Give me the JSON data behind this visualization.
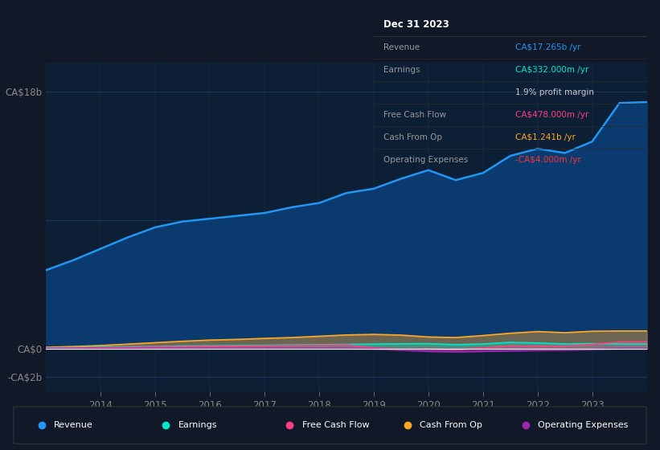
{
  "bg_color": "#111827",
  "plot_bg_color": "#0d1f35",
  "grid_color": "#1e3a5f",
  "years": [
    2013.0,
    2013.5,
    2014.0,
    2014.5,
    2015.0,
    2015.5,
    2016.0,
    2016.5,
    2017.0,
    2017.5,
    2018.0,
    2018.5,
    2019.0,
    2019.5,
    2020.0,
    2020.5,
    2021.0,
    2021.5,
    2022.0,
    2022.5,
    2023.0,
    2023.5,
    2024.0
  ],
  "revenue": [
    5.5,
    6.2,
    7.0,
    7.8,
    8.5,
    8.9,
    9.1,
    9.3,
    9.5,
    9.9,
    10.2,
    10.9,
    11.2,
    11.9,
    12.5,
    11.8,
    12.3,
    13.5,
    14.0,
    13.7,
    14.5,
    17.2,
    17.265
  ],
  "earnings": [
    0.05,
    0.07,
    0.1,
    0.13,
    0.15,
    0.19,
    0.2,
    0.22,
    0.24,
    0.26,
    0.28,
    0.3,
    0.32,
    0.34,
    0.35,
    0.28,
    0.33,
    0.44,
    0.4,
    0.33,
    0.36,
    0.33,
    0.332
  ],
  "free_cash_flow": [
    0.02,
    0.04,
    0.06,
    0.09,
    0.12,
    0.14,
    0.16,
    0.18,
    0.2,
    0.22,
    0.24,
    0.26,
    0.05,
    -0.05,
    -0.02,
    -0.08,
    0.05,
    0.2,
    0.18,
    0.18,
    0.3,
    0.47,
    0.478
  ],
  "cash_from_op": [
    0.1,
    0.15,
    0.22,
    0.32,
    0.42,
    0.52,
    0.6,
    0.65,
    0.72,
    0.78,
    0.87,
    0.96,
    1.0,
    0.95,
    0.82,
    0.78,
    0.92,
    1.08,
    1.2,
    1.12,
    1.22,
    1.24,
    1.241
  ],
  "operating_expenses": [
    0.0,
    0.0,
    0.0,
    0.0,
    0.0,
    0.0,
    0.0,
    0.0,
    0.0,
    0.0,
    0.0,
    0.0,
    -0.02,
    -0.1,
    -0.18,
    -0.22,
    -0.18,
    -0.15,
    -0.12,
    -0.1,
    -0.06,
    -0.004,
    -0.004
  ],
  "revenue_color": "#2196f3",
  "revenue_fill": "#0a3a6e",
  "earnings_color": "#00e5cc",
  "free_cash_flow_color": "#ff4081",
  "cash_from_op_color": "#ffa726",
  "operating_expenses_color": "#9c27b0",
  "ylim_top": 20.0,
  "ylim_bottom": -3.0,
  "xlim_left": 2013.0,
  "xlim_right": 2024.0,
  "ytick_positions": [
    -2.0,
    0.0,
    9.0,
    18.0
  ],
  "ytick_labels": [
    "-CA$2b",
    "CA$0",
    "",
    "CA$18b"
  ],
  "xticks": [
    2014,
    2015,
    2016,
    2017,
    2018,
    2019,
    2020,
    2021,
    2022,
    2023
  ],
  "info_box": {
    "title": "Dec 31 2023",
    "rows": [
      {
        "label": "Revenue",
        "value": "CA$17.265b /yr",
        "value_color": "#2196f3"
      },
      {
        "label": "Earnings",
        "value": "CA$332.000m /yr",
        "value_color": "#00e5cc"
      },
      {
        "label": "",
        "value": "1.9% profit margin",
        "value_color": "#cccccc"
      },
      {
        "label": "Free Cash Flow",
        "value": "CA$478.000m /yr",
        "value_color": "#ff4081"
      },
      {
        "label": "Cash From Op",
        "value": "CA$1.241b /yr",
        "value_color": "#ffa726"
      },
      {
        "label": "Operating Expenses",
        "value": "-CA$4.000m /yr",
        "value_color": "#ff3333"
      }
    ]
  },
  "legend_items": [
    {
      "label": "Revenue",
      "color": "#2196f3"
    },
    {
      "label": "Earnings",
      "color": "#00e5cc"
    },
    {
      "label": "Free Cash Flow",
      "color": "#ff4081"
    },
    {
      "label": "Cash From Op",
      "color": "#ffa726"
    },
    {
      "label": "Operating Expenses",
      "color": "#9c27b0"
    }
  ]
}
